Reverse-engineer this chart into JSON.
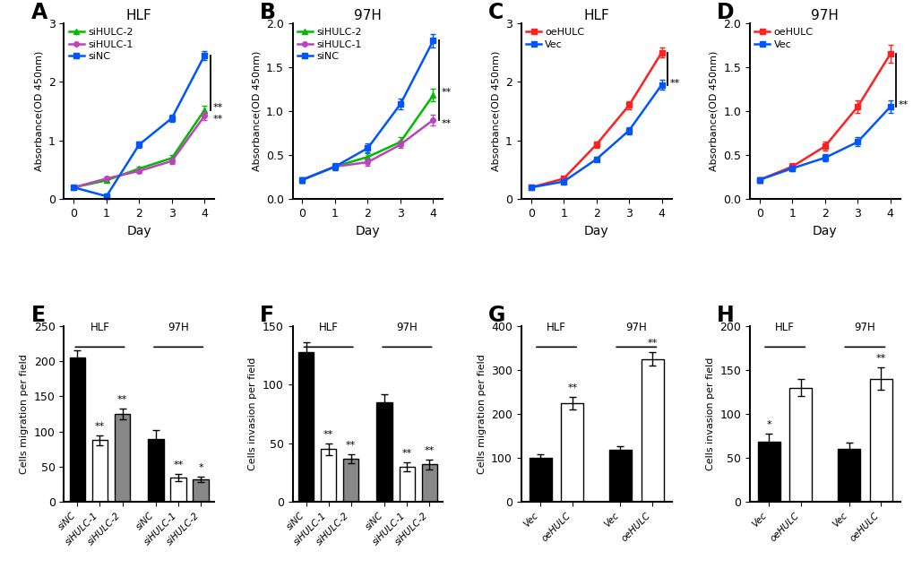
{
  "panel_A": {
    "title": "HLF",
    "days": [
      0,
      1,
      2,
      3,
      4
    ],
    "siNC": [
      0.2,
      0.05,
      0.93,
      1.38,
      2.45
    ],
    "siHULC1": [
      0.2,
      0.35,
      0.48,
      0.65,
      1.42
    ],
    "siHULC2": [
      0.2,
      0.32,
      0.52,
      0.7,
      1.52
    ],
    "siNC_err": [
      0.03,
      0.04,
      0.05,
      0.06,
      0.08
    ],
    "siHULC1_err": [
      0.03,
      0.03,
      0.04,
      0.05,
      0.07
    ],
    "siHULC2_err": [
      0.03,
      0.03,
      0.04,
      0.05,
      0.07
    ],
    "ylim": [
      0,
      3
    ],
    "yticks": [
      0,
      1,
      2,
      3
    ],
    "ylabel": "Absorbance(OD 450nm)",
    "xlabel": "Day",
    "colors": {
      "siNC": "#0055FF",
      "siHULC1": "#BB44BB",
      "siHULC2": "#00BB00"
    }
  },
  "panel_B": {
    "title": "97H",
    "days": [
      0,
      1,
      2,
      3,
      4
    ],
    "siNC": [
      0.22,
      0.37,
      0.58,
      1.08,
      1.8
    ],
    "siHULC1": [
      0.22,
      0.37,
      0.42,
      0.62,
      0.9
    ],
    "siHULC2": [
      0.22,
      0.37,
      0.48,
      0.65,
      1.18
    ],
    "siNC_err": [
      0.03,
      0.04,
      0.05,
      0.06,
      0.08
    ],
    "siHULC1_err": [
      0.03,
      0.03,
      0.04,
      0.04,
      0.06
    ],
    "siHULC2_err": [
      0.03,
      0.03,
      0.04,
      0.05,
      0.07
    ],
    "ylim": [
      0,
      2.0
    ],
    "yticks": [
      0.0,
      0.5,
      1.0,
      1.5,
      2.0
    ],
    "ylabel": "Absorbance(OD 450nm)",
    "xlabel": "Day",
    "colors": {
      "siNC": "#0055FF",
      "siHULC1": "#BB44BB",
      "siHULC2": "#00BB00"
    }
  },
  "panel_C": {
    "title": "HLF",
    "days": [
      0,
      1,
      2,
      3,
      4
    ],
    "oeHULC": [
      0.2,
      0.35,
      0.93,
      1.6,
      2.5
    ],
    "Vec": [
      0.2,
      0.3,
      0.68,
      1.17,
      1.95
    ],
    "oeHULC_err": [
      0.03,
      0.04,
      0.05,
      0.07,
      0.09
    ],
    "Vec_err": [
      0.03,
      0.04,
      0.04,
      0.06,
      0.08
    ],
    "ylim": [
      0,
      3
    ],
    "yticks": [
      0,
      1,
      2,
      3
    ],
    "ylabel": "Absorbance(OD 450nm)",
    "xlabel": "Day",
    "colors": {
      "oeHULC": "#FF2020",
      "Vec": "#0055FF"
    }
  },
  "panel_D": {
    "title": "97H",
    "days": [
      0,
      1,
      2,
      3,
      4
    ],
    "oeHULC": [
      0.22,
      0.37,
      0.6,
      1.05,
      1.65
    ],
    "Vec": [
      0.22,
      0.35,
      0.47,
      0.65,
      1.05
    ],
    "oeHULC_err": [
      0.03,
      0.04,
      0.05,
      0.07,
      0.1
    ],
    "Vec_err": [
      0.03,
      0.03,
      0.04,
      0.05,
      0.07
    ],
    "ylim": [
      0,
      2.0
    ],
    "yticks": [
      0.0,
      0.5,
      1.0,
      1.5,
      2.0
    ],
    "ylabel": "Absorbance(OD 450nm)",
    "xlabel": "Day",
    "colors": {
      "oeHULC": "#FF2020",
      "Vec": "#0055FF"
    }
  },
  "panel_E": {
    "ylabel": "Cells migration per field",
    "categories": [
      "siNC",
      "siHULC-1",
      "siHULC-2",
      "siNC",
      "siHULC-1",
      "siHULC-2"
    ],
    "values": [
      205,
      88,
      125,
      90,
      35,
      32
    ],
    "errors": [
      10,
      7,
      8,
      12,
      5,
      4
    ],
    "colors": [
      "#000000",
      "#FFFFFF",
      "#888888",
      "#000000",
      "#FFFFFF",
      "#888888"
    ],
    "edgecolors": [
      "#000000",
      "#000000",
      "#000000",
      "#000000",
      "#000000",
      "#000000"
    ],
    "ylim": [
      0,
      250
    ],
    "yticks": [
      0,
      50,
      100,
      150,
      200,
      250
    ],
    "sig": [
      "",
      "**",
      "**",
      "",
      "**",
      "*"
    ],
    "hlf_label": "HLF",
    "h97_label": "97H",
    "italic_xticks": [
      false,
      true,
      true,
      false,
      true,
      true
    ]
  },
  "panel_F": {
    "ylabel": "Cells invasion per field",
    "categories": [
      "siNC",
      "siHULC-1",
      "siHULC-2",
      "siNC",
      "siHULC-1",
      "siHULC-2"
    ],
    "values": [
      128,
      45,
      37,
      85,
      30,
      32
    ],
    "errors": [
      8,
      5,
      4,
      7,
      4,
      4
    ],
    "colors": [
      "#000000",
      "#FFFFFF",
      "#888888",
      "#000000",
      "#FFFFFF",
      "#888888"
    ],
    "edgecolors": [
      "#000000",
      "#000000",
      "#000000",
      "#000000",
      "#000000",
      "#000000"
    ],
    "ylim": [
      0,
      150
    ],
    "yticks": [
      0,
      50,
      100,
      150
    ],
    "sig": [
      "",
      "**",
      "**",
      "",
      "**",
      "**"
    ],
    "hlf_label": "HLF",
    "h97_label": "97H",
    "italic_xticks": [
      false,
      true,
      true,
      false,
      true,
      true
    ]
  },
  "panel_G": {
    "ylabel": "Cells migration per field",
    "categories": [
      "Vec",
      "oeHULC",
      "Vec",
      "oeHULC"
    ],
    "values": [
      100,
      225,
      118,
      325
    ],
    "errors": [
      9,
      14,
      8,
      15
    ],
    "colors": [
      "#000000",
      "#FFFFFF",
      "#000000",
      "#FFFFFF"
    ],
    "edgecolors": [
      "#000000",
      "#000000",
      "#000000",
      "#000000"
    ],
    "ylim": [
      0,
      400
    ],
    "yticks": [
      0,
      100,
      200,
      300,
      400
    ],
    "sig": [
      "",
      "**",
      "",
      "**"
    ],
    "hlf_label": "HLF",
    "h97_label": "97H",
    "italic_xticks": [
      false,
      true,
      false,
      true
    ]
  },
  "panel_H": {
    "ylabel": "Cells invasion per field",
    "categories": [
      "Vec",
      "oeHULC",
      "Vec",
      "oeHULC"
    ],
    "values": [
      68,
      130,
      60,
      140
    ],
    "errors": [
      10,
      10,
      7,
      13
    ],
    "colors": [
      "#000000",
      "#FFFFFF",
      "#000000",
      "#FFFFFF"
    ],
    "edgecolors": [
      "#000000",
      "#000000",
      "#000000",
      "#000000"
    ],
    "ylim": [
      0,
      200
    ],
    "yticks": [
      0,
      50,
      100,
      150,
      200
    ],
    "sig": [
      "*",
      "",
      "",
      "**"
    ],
    "hlf_label": "HLF",
    "h97_label": "97H",
    "italic_xticks": [
      false,
      true,
      false,
      true
    ]
  },
  "background_color": "#FFFFFF",
  "tick_fontsize": 9,
  "title_fontsize": 11,
  "panel_label_fontsize": 17,
  "axis_label_fontsize": 8,
  "legend_fontsize": 8
}
